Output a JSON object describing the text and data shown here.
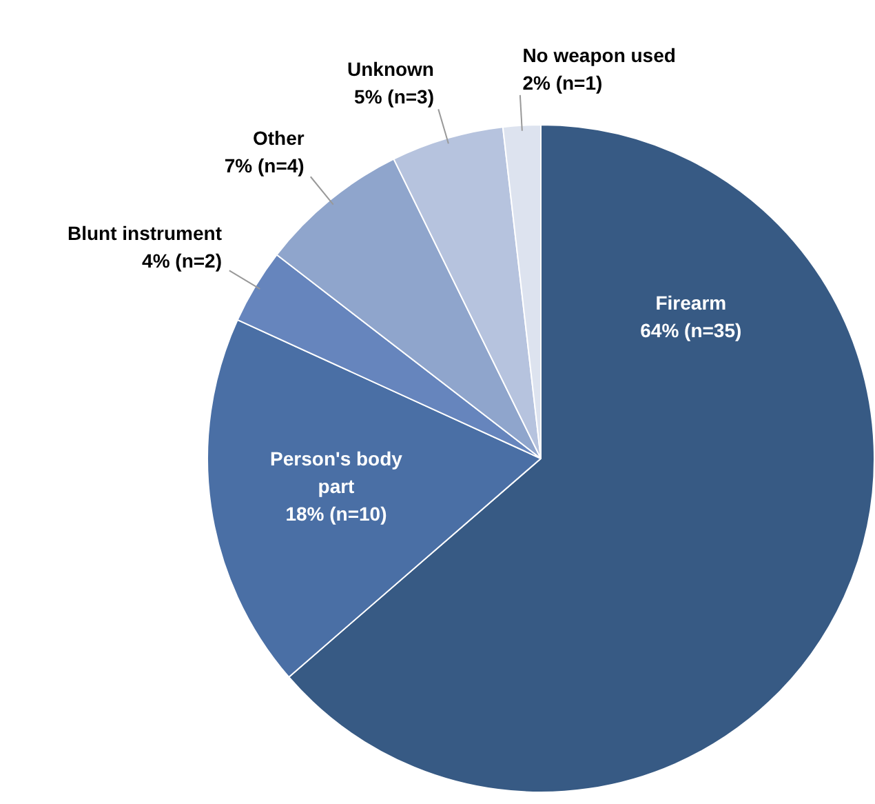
{
  "chart_data": {
    "type": "pie",
    "categories": [
      "Firearm",
      "Person's body part",
      "Blunt instrument",
      "Other",
      "Unknown",
      "No weapon used"
    ],
    "values": [
      35,
      10,
      2,
      4,
      3,
      1
    ],
    "colors": [
      "#375a84",
      "#4a6fa5",
      "#6685bd",
      "#8fa5cc",
      "#b6c3de",
      "#dde3ef"
    ],
    "value_labels": [
      "64% (n=35)",
      "18% (n=10)",
      "4% (n=2)",
      "7% (n=4)",
      "5% (n=3)",
      "2% (n=1)"
    ],
    "legend": false
  }
}
